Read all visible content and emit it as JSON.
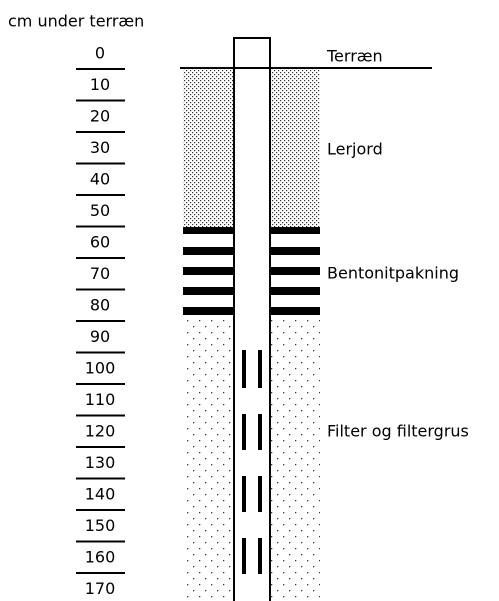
{
  "axis_title": "cm under terræn",
  "depths": [
    0,
    10,
    20,
    30,
    40,
    50,
    60,
    70,
    80,
    90,
    100,
    110,
    120,
    130,
    140,
    150,
    160,
    170
  ],
  "layers": {
    "surface": "Terræn",
    "clay": "Lerjord",
    "seal": "Bentonitpakning",
    "filter": "Filter og filtergrus"
  }
}
